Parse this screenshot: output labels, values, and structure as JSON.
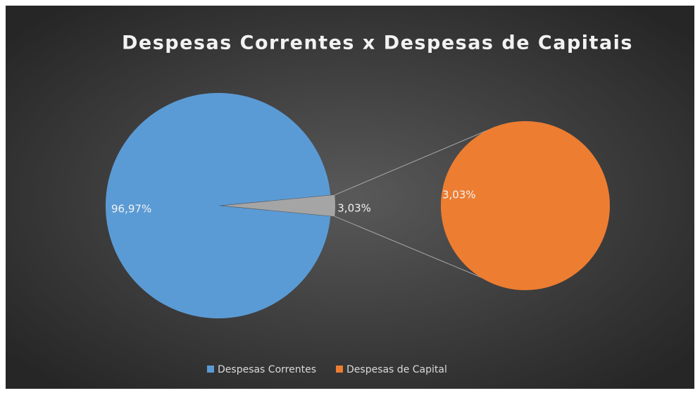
{
  "chart_data": {
    "type": "pie",
    "title": "Despesas Correntes x Despesas de Capitais",
    "categories": [
      "Despesas Correntes",
      "Despesas de Capital"
    ],
    "values": [
      96.97,
      3.03
    ],
    "value_labels": [
      "96,97%",
      "3,03%"
    ],
    "colors": [
      "#5b9bd5",
      "#ed7d31"
    ],
    "legend": "bottom"
  }
}
